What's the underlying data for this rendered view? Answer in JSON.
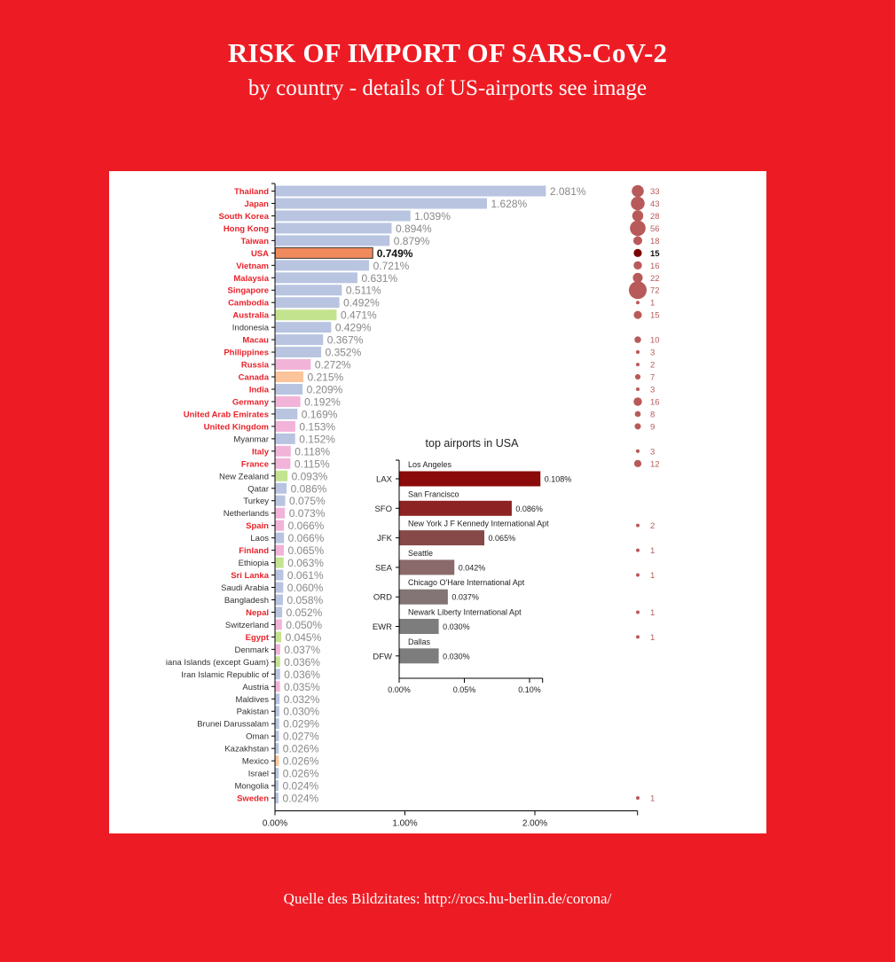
{
  "header": {
    "title": "RISK OF IMPORT OF SARS-CoV-2",
    "subtitle": "by country - details of US-airports see image"
  },
  "footer": {
    "source": "Quelle des Bildzitates: http://rocs.hu-berlin.de/corona/"
  },
  "colors": {
    "background": "#ed1c24",
    "panel": "#ffffff",
    "bar_default": "#b8c4e0",
    "bar_usa": "#f08a5d",
    "bar_green": "#c4e38f",
    "bar_pink": "#f2b3d8",
    "bar_orange": "#fbc49a",
    "label_red": "#e8232b",
    "label_dark": "#333333",
    "value_text": "#888888",
    "dot": "#b85a5a",
    "dot_usa": "#7a0000"
  },
  "chart_data": [
    {
      "type": "bar",
      "orientation": "horizontal",
      "xlim": [
        0,
        0.028
      ],
      "xticks": [
        "0.00%",
        "1.00%",
        "2.00%"
      ],
      "xtick_values": [
        0,
        0.01,
        0.02
      ],
      "categories": [
        "Thailand",
        "Japan",
        "South Korea",
        "Hong Kong",
        "Taiwan",
        "USA",
        "Vietnam",
        "Malaysia",
        "Singapore",
        "Cambodia",
        "Australia",
        "Indonesia",
        "Macau",
        "Philippines",
        "Russia",
        "Canada",
        "India",
        "Germany",
        "United Arab Emirates",
        "United Kingdom",
        "Myanmar",
        "Italy",
        "France",
        "New Zealand",
        "Qatar",
        "Turkey",
        "Netherlands",
        "Spain",
        "Laos",
        "Finland",
        "Ethiopia",
        "Sri Lanka",
        "Saudi Arabia",
        "Bangladesh",
        "Nepal",
        "Switzerland",
        "Egypt",
        "Denmark",
        "iana Islands (except Guam)",
        "Iran Islamic Republic of",
        "Austria",
        "Maldives",
        "Pakistan",
        "Brunei Darussalam",
        "Oman",
        "Kazakhstan",
        "Mexico",
        "Israel",
        "Mongolia",
        "Sweden"
      ],
      "values": [
        0.02081,
        0.01628,
        0.01039,
        0.00894,
        0.00879,
        0.00749,
        0.00721,
        0.00631,
        0.00511,
        0.00492,
        0.00471,
        0.00429,
        0.00367,
        0.00352,
        0.00272,
        0.00215,
        0.00209,
        0.00192,
        0.00169,
        0.00153,
        0.00152,
        0.00118,
        0.00115,
        0.00093,
        0.00086,
        0.00075,
        0.00073,
        0.00066,
        0.00066,
        0.00065,
        0.00063,
        0.00061,
        0.0006,
        0.00058,
        0.00052,
        0.0005,
        0.00045,
        0.00037,
        0.00036,
        0.00036,
        0.00035,
        0.00032,
        0.0003,
        0.00029,
        0.00027,
        0.00026,
        0.00026,
        0.00026,
        0.00024,
        0.00024
      ],
      "value_labels": [
        "2.081%",
        "1.628%",
        "1.039%",
        "0.894%",
        "0.879%",
        "0.749%",
        "0.721%",
        "0.631%",
        "0.511%",
        "0.492%",
        "0.471%",
        "0.429%",
        "0.367%",
        "0.352%",
        "0.272%",
        "0.215%",
        "0.209%",
        "0.192%",
        "0.169%",
        "0.153%",
        "0.152%",
        "0.118%",
        "0.115%",
        "0.093%",
        "0.086%",
        "0.075%",
        "0.073%",
        "0.066%",
        "0.066%",
        "0.065%",
        "0.063%",
        "0.061%",
        "0.060%",
        "0.058%",
        "0.052%",
        "0.050%",
        "0.045%",
        "0.037%",
        "0.036%",
        "0.036%",
        "0.035%",
        "0.032%",
        "0.030%",
        "0.029%",
        "0.027%",
        "0.026%",
        "0.026%",
        "0.026%",
        "0.024%",
        "0.024%"
      ],
      "bar_colors": [
        "default",
        "default",
        "default",
        "default",
        "default",
        "usa",
        "default",
        "default",
        "default",
        "default",
        "green",
        "default",
        "default",
        "default",
        "pink",
        "orange",
        "default",
        "pink",
        "default",
        "pink",
        "default",
        "pink",
        "pink",
        "green",
        "default",
        "default",
        "pink",
        "pink",
        "default",
        "pink",
        "green",
        "default",
        "default",
        "default",
        "default",
        "pink",
        "green",
        "pink",
        "green",
        "default",
        "pink",
        "default",
        "default",
        "default",
        "default",
        "default",
        "orange",
        "default",
        "default",
        "default"
      ],
      "label_red": [
        true,
        true,
        true,
        true,
        true,
        true,
        true,
        true,
        true,
        true,
        true,
        false,
        true,
        true,
        true,
        true,
        true,
        true,
        true,
        true,
        false,
        true,
        true,
        false,
        false,
        false,
        false,
        true,
        false,
        true,
        false,
        true,
        false,
        false,
        true,
        false,
        true,
        false,
        false,
        false,
        false,
        false,
        false,
        false,
        false,
        false,
        false,
        false,
        false,
        true
      ],
      "highlight": "USA",
      "cases": [
        33,
        43,
        28,
        56,
        18,
        15,
        16,
        22,
        72,
        1,
        15,
        null,
        10,
        3,
        2,
        7,
        3,
        16,
        8,
        9,
        null,
        3,
        12,
        null,
        null,
        null,
        null,
        2,
        null,
        1,
        null,
        1,
        null,
        null,
        1,
        null,
        1,
        null,
        null,
        null,
        null,
        null,
        null,
        null,
        null,
        null,
        null,
        null,
        null,
        1
      ]
    },
    {
      "type": "bar",
      "orientation": "horizontal",
      "title": "top airports in USA",
      "xlim": [
        0,
        0.0011
      ],
      "xticks": [
        "0.00%",
        "0.05%",
        "0.10%"
      ],
      "xtick_values": [
        0,
        0.0005,
        0.001
      ],
      "categories": [
        "LAX",
        "SFO",
        "JFK",
        "SEA",
        "ORD",
        "EWR",
        "DFW"
      ],
      "names": [
        "Los Angeles",
        "San Francisco",
        "New York J F Kennedy International Apt",
        "Seattle",
        "Chicago O'Hare International Apt",
        "Newark Liberty International Apt",
        "Dallas"
      ],
      "values": [
        0.00108,
        0.00086,
        0.00065,
        0.00042,
        0.00037,
        0.0003,
        0.0003
      ],
      "value_labels": [
        "0.108%",
        "0.086%",
        "0.065%",
        "0.042%",
        "0.037%",
        "0.030%",
        "0.030%"
      ],
      "bar_colors": [
        "#8b0a0a",
        "#8e2323",
        "#874848",
        "#8a6a6a",
        "#837575",
        "#7d7d7d",
        "#7d7d7d"
      ]
    }
  ]
}
